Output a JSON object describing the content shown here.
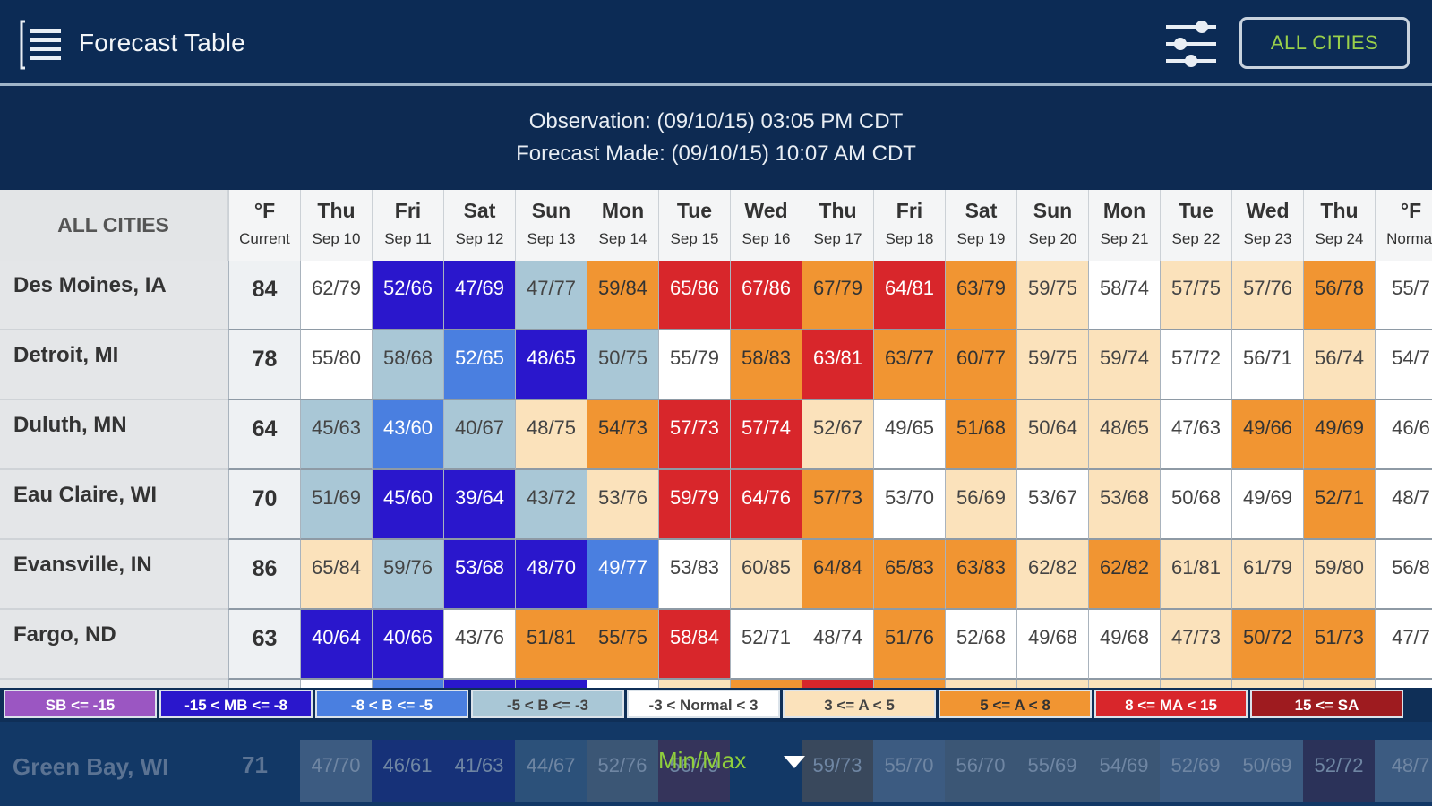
{
  "header": {
    "title": "Forecast Table",
    "menu_icon": "menu-list-icon",
    "filter_icon": "sliders-icon",
    "all_cities_button": "ALL CITIES"
  },
  "info": {
    "observation": "Observation: (09/10/15) 03:05 PM CDT",
    "forecast_made": "Forecast Made: (09/10/15) 10:07 AM CDT"
  },
  "table": {
    "corner_label": "ALL CITIES",
    "columns": [
      {
        "day": "°F",
        "date": "Current"
      },
      {
        "day": "Thu",
        "date": "Sep 10"
      },
      {
        "day": "Fri",
        "date": "Sep 11"
      },
      {
        "day": "Sat",
        "date": "Sep 12"
      },
      {
        "day": "Sun",
        "date": "Sep 13"
      },
      {
        "day": "Mon",
        "date": "Sep 14"
      },
      {
        "day": "Tue",
        "date": "Sep 15"
      },
      {
        "day": "Wed",
        "date": "Sep 16"
      },
      {
        "day": "Thu",
        "date": "Sep 17"
      },
      {
        "day": "Fri",
        "date": "Sep 18"
      },
      {
        "day": "Sat",
        "date": "Sep 19"
      },
      {
        "day": "Sun",
        "date": "Sep 20"
      },
      {
        "day": "Mon",
        "date": "Sep 21"
      },
      {
        "day": "Tue",
        "date": "Sep 22"
      },
      {
        "day": "Wed",
        "date": "Sep 23"
      },
      {
        "day": "Thu",
        "date": "Sep 24"
      },
      {
        "day": "°F",
        "date": "Normal"
      }
    ],
    "rows": [
      {
        "city": "Des Moines, IA",
        "current": "84",
        "values": [
          "62/79",
          "52/66",
          "47/69",
          "47/77",
          "59/84",
          "65/86",
          "67/86",
          "67/79",
          "64/81",
          "63/79",
          "59/75",
          "58/74",
          "57/75",
          "57/76",
          "56/78",
          "55/7"
        ],
        "cats": [
          "n",
          "mb",
          "mb",
          "lb",
          "a",
          "ma",
          "ma",
          "a",
          "ma",
          "a",
          "la",
          "n",
          "la",
          "la",
          "a",
          "n"
        ]
      },
      {
        "city": "Detroit, MI",
        "current": "78",
        "values": [
          "55/80",
          "58/68",
          "52/65",
          "48/65",
          "50/75",
          "55/79",
          "58/83",
          "63/81",
          "63/77",
          "60/77",
          "59/75",
          "59/74",
          "57/72",
          "56/71",
          "56/74",
          "54/7"
        ],
        "cats": [
          "n",
          "lb",
          "b",
          "mb",
          "lb",
          "n",
          "a",
          "ma",
          "a",
          "a",
          "la",
          "la",
          "n",
          "n",
          "la",
          "n"
        ]
      },
      {
        "city": "Duluth, MN",
        "current": "64",
        "values": [
          "45/63",
          "43/60",
          "40/67",
          "48/75",
          "54/73",
          "57/73",
          "57/74",
          "52/67",
          "49/65",
          "51/68",
          "50/64",
          "48/65",
          "47/63",
          "49/66",
          "49/69",
          "46/6"
        ],
        "cats": [
          "lb",
          "b",
          "lb",
          "la",
          "a",
          "ma",
          "ma",
          "la",
          "n",
          "a",
          "la",
          "la",
          "n",
          "a",
          "a",
          "n"
        ]
      },
      {
        "city": "Eau Claire, WI",
        "current": "70",
        "values": [
          "51/69",
          "45/60",
          "39/64",
          "43/72",
          "53/76",
          "59/79",
          "64/76",
          "57/73",
          "53/70",
          "56/69",
          "53/67",
          "53/68",
          "50/68",
          "49/69",
          "52/71",
          "48/7"
        ],
        "cats": [
          "lb",
          "mb",
          "mb",
          "lb",
          "la",
          "ma",
          "ma",
          "a",
          "n",
          "la",
          "n",
          "la",
          "n",
          "n",
          "a",
          "n"
        ]
      },
      {
        "city": "Evansville, IN",
        "current": "86",
        "values": [
          "65/84",
          "59/76",
          "53/68",
          "48/70",
          "49/77",
          "53/83",
          "60/85",
          "64/84",
          "65/83",
          "63/83",
          "62/82",
          "62/82",
          "61/81",
          "61/79",
          "59/80",
          "56/8"
        ],
        "cats": [
          "la",
          "lb",
          "mb",
          "mb",
          "b",
          "n",
          "la",
          "a",
          "a",
          "a",
          "la",
          "a",
          "la",
          "la",
          "la",
          "n"
        ]
      },
      {
        "city": "Fargo, ND",
        "current": "63",
        "values": [
          "40/64",
          "40/66",
          "43/76",
          "51/81",
          "55/75",
          "58/84",
          "52/71",
          "48/74",
          "51/76",
          "52/68",
          "49/68",
          "49/68",
          "47/73",
          "50/72",
          "51/73",
          "47/7"
        ],
        "cats": [
          "mb",
          "mb",
          "n",
          "a",
          "a",
          "ma",
          "n",
          "n",
          "a",
          "n",
          "n",
          "n",
          "la",
          "a",
          "a",
          "n"
        ]
      }
    ],
    "partial_row_cats": [
      "n",
      "b",
      "mb",
      "mb",
      "n",
      "la",
      "a",
      "ma",
      "a",
      "la",
      "la",
      "la",
      "la",
      "la",
      "la",
      "n"
    ]
  },
  "legend": [
    {
      "label": "SB <= -15",
      "cat": "sb"
    },
    {
      "label": "-15 < MB <= -8",
      "cat": "mb"
    },
    {
      "label": "-8 < B <= -5",
      "cat": "b"
    },
    {
      "label": "-5 < B <= -3",
      "cat": "lb"
    },
    {
      "label": "-3 < Normal < 3",
      "cat": "n"
    },
    {
      "label": "3 <= A < 5",
      "cat": "la"
    },
    {
      "label": "5 <= A < 8",
      "cat": "a"
    },
    {
      "label": "8 <= MA < 15",
      "cat": "ma"
    },
    {
      "label": "15 <= SA",
      "cat": "sa"
    }
  ],
  "bottom": {
    "ghost_city": "Green Bay, WI",
    "ghost_current": "71",
    "ghost_values": [
      "47/70",
      "46/61",
      "41/63",
      "44/67",
      "52/76",
      "56/79",
      "",
      "59/73",
      "55/70",
      "56/70",
      "55/69",
      "54/69",
      "52/69",
      "50/69",
      "52/72",
      "48/7"
    ],
    "ghost_cats": [
      "n",
      "mb",
      "mb",
      "lb",
      "la",
      "ma",
      "",
      "a",
      "n",
      "la",
      "la",
      "la",
      "n",
      "n",
      "sa",
      "n"
    ],
    "selector_label": "Min/Max"
  },
  "colors": {
    "header_bg": "#0c2b55",
    "accent_green": "#9ad04a"
  }
}
